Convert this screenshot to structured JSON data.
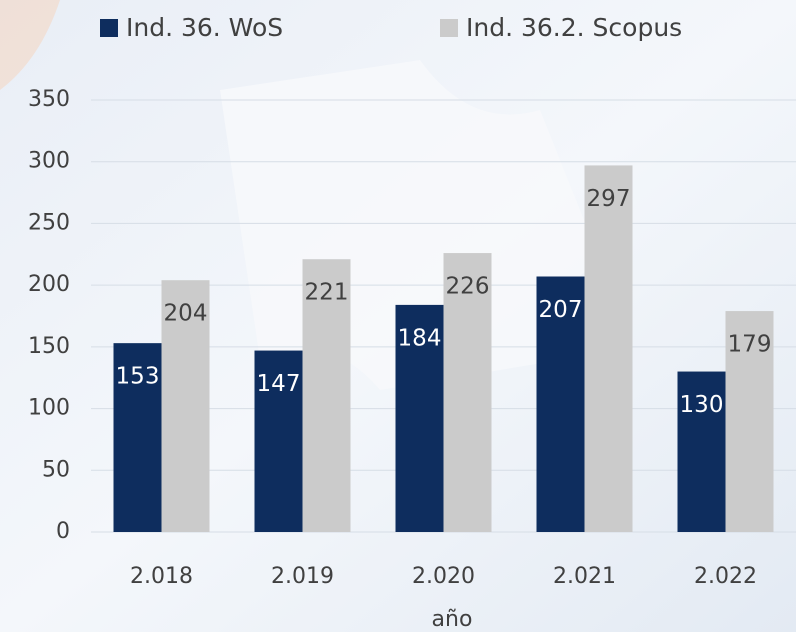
{
  "chart_data": {
    "type": "bar",
    "x_label": "año",
    "categories": [
      "2.018",
      "2.019",
      "2.020",
      "2.021",
      "2.022"
    ],
    "series": [
      {
        "name": "Ind. 36. WoS",
        "color": "#0e2d5e",
        "values": [
          153,
          147,
          184,
          207,
          130
        ]
      },
      {
        "name": "Ind. 36.2. Scopus",
        "color": "#cbcbcb",
        "values": [
          204,
          221,
          226,
          297,
          179
        ]
      }
    ],
    "ylim": [
      0,
      350
    ],
    "yticks": [
      0,
      50,
      100,
      150,
      200,
      250,
      300,
      350
    ],
    "grid": true,
    "legend": "top"
  }
}
